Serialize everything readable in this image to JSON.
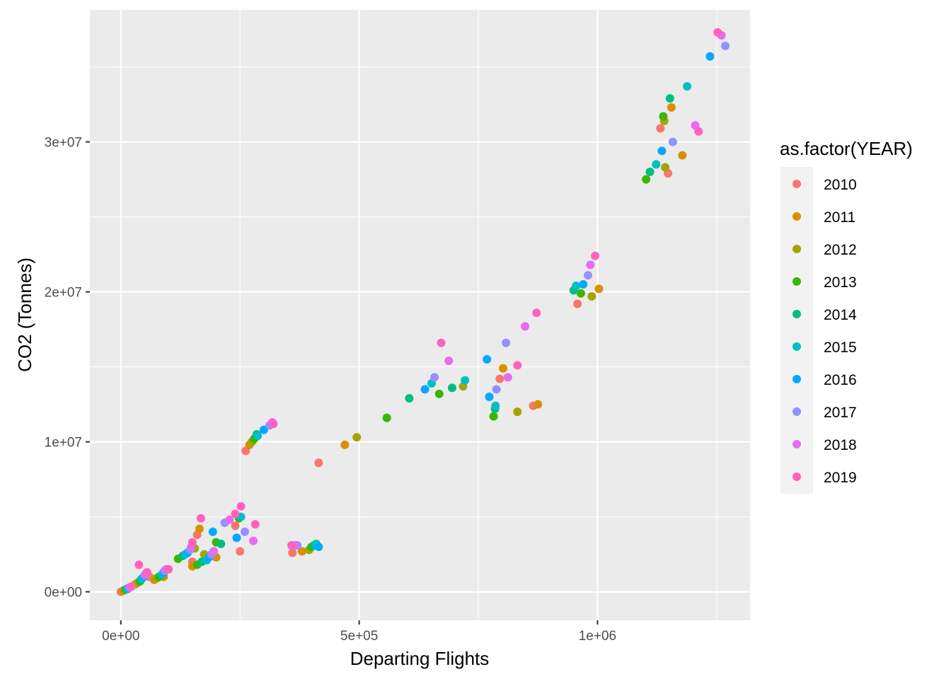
{
  "chart_data": {
    "type": "scatter",
    "xlabel": "Departing Flights",
    "ylabel": "CO2 (Tonnes)",
    "xlim": [
      -65000,
      1320000
    ],
    "ylim": [
      -1900000,
      38800000
    ],
    "x_ticks": [
      {
        "value": 0,
        "label": "0e+00"
      },
      {
        "value": 500000,
        "label": "5e+05"
      },
      {
        "value": 1000000,
        "label": "1e+06"
      }
    ],
    "y_ticks": [
      {
        "value": 0,
        "label": "0e+00"
      },
      {
        "value": 10000000,
        "label": "1e+07"
      },
      {
        "value": 20000000,
        "label": "2e+07"
      },
      {
        "value": 30000000,
        "label": "3e+07"
      }
    ],
    "grid": true,
    "legend": {
      "title": "as.factor(YEAR)",
      "position": "right"
    },
    "series": [
      {
        "name": "2010",
        "color": "#F8766D",
        "points": [
          [
            0,
            0
          ],
          [
            15000,
            200000
          ],
          [
            40000,
            700000
          ],
          [
            60000,
            1000000
          ],
          [
            150000,
            2000000
          ],
          [
            160000,
            3800000
          ],
          [
            240000,
            4400000
          ],
          [
            250000,
            2700000
          ],
          [
            262000,
            9400000
          ],
          [
            360000,
            2600000
          ],
          [
            415000,
            8600000
          ],
          [
            795000,
            14200000
          ],
          [
            865000,
            12400000
          ],
          [
            958000,
            19200000
          ],
          [
            1132000,
            30900000
          ],
          [
            1148000,
            27900000
          ]
        ]
      },
      {
        "name": "2011",
        "color": "#D89000",
        "points": [
          [
            5000,
            80000
          ],
          [
            30000,
            500000
          ],
          [
            70000,
            800000
          ],
          [
            90000,
            1000000
          ],
          [
            150000,
            1700000
          ],
          [
            165000,
            4200000
          ],
          [
            200000,
            2300000
          ],
          [
            270000,
            9800000
          ],
          [
            380000,
            2700000
          ],
          [
            470000,
            9800000
          ],
          [
            802000,
            14900000
          ],
          [
            875000,
            12500000
          ],
          [
            1003000,
            20200000
          ],
          [
            1155000,
            32300000
          ],
          [
            1178000,
            29100000
          ]
        ]
      },
      {
        "name": "2012",
        "color": "#A3A500",
        "points": [
          [
            8000,
            120000
          ],
          [
            35000,
            600000
          ],
          [
            75000,
            900000
          ],
          [
            155000,
            2900000
          ],
          [
            175000,
            2500000
          ],
          [
            275000,
            10000000
          ],
          [
            395000,
            2800000
          ],
          [
            495000,
            10300000
          ],
          [
            718000,
            13700000
          ],
          [
            832000,
            12000000
          ],
          [
            988000,
            19700000
          ],
          [
            1140000,
            31400000
          ],
          [
            1142000,
            28300000
          ]
        ]
      },
      {
        "name": "2013",
        "color": "#39B600",
        "points": [
          [
            10000,
            150000
          ],
          [
            40000,
            700000
          ],
          [
            80000,
            1000000
          ],
          [
            120000,
            2200000
          ],
          [
            160000,
            1800000
          ],
          [
            200000,
            3300000
          ],
          [
            248000,
            4900000
          ],
          [
            280000,
            10200000
          ],
          [
            400000,
            3000000
          ],
          [
            558000,
            11600000
          ],
          [
            668000,
            13200000
          ],
          [
            782000,
            11700000
          ],
          [
            965000,
            19900000
          ],
          [
            1102000,
            27500000
          ],
          [
            1138000,
            31700000
          ]
        ]
      },
      {
        "name": "2014",
        "color": "#00BF7D",
        "points": [
          [
            12000,
            180000
          ],
          [
            42000,
            800000
          ],
          [
            85000,
            1100000
          ],
          [
            130000,
            2400000
          ],
          [
            170000,
            2000000
          ],
          [
            210000,
            3200000
          ],
          [
            285000,
            10500000
          ],
          [
            405000,
            3100000
          ],
          [
            605000,
            12900000
          ],
          [
            695000,
            13600000
          ],
          [
            785000,
            12200000
          ],
          [
            950000,
            20100000
          ],
          [
            1110000,
            28000000
          ],
          [
            1152000,
            32900000
          ]
        ]
      },
      {
        "name": "2015",
        "color": "#00BFC4",
        "points": [
          [
            14000,
            220000
          ],
          [
            45000,
            900000
          ],
          [
            88000,
            1200000
          ],
          [
            135000,
            2500000
          ],
          [
            180000,
            2100000
          ],
          [
            252000,
            5000000
          ],
          [
            287000,
            10400000
          ],
          [
            410000,
            3200000
          ],
          [
            652000,
            13900000
          ],
          [
            722000,
            14100000
          ],
          [
            786000,
            12400000
          ],
          [
            955000,
            20400000
          ],
          [
            1123000,
            28500000
          ],
          [
            1188000,
            33700000
          ]
        ]
      },
      {
        "name": "2016",
        "color": "#00A9FF",
        "points": [
          [
            16000,
            250000
          ],
          [
            48000,
            1000000
          ],
          [
            90000,
            1300000
          ],
          [
            140000,
            2600000
          ],
          [
            185000,
            2300000
          ],
          [
            193000,
            4000000
          ],
          [
            243000,
            3600000
          ],
          [
            300000,
            10800000
          ],
          [
            415000,
            3000000
          ],
          [
            638000,
            13500000
          ],
          [
            768000,
            15500000
          ],
          [
            773000,
            13000000
          ],
          [
            970000,
            20500000
          ],
          [
            1135000,
            29400000
          ],
          [
            1236000,
            35700000
          ]
        ]
      },
      {
        "name": "2017",
        "color": "#9590FF",
        "points": [
          [
            18000,
            280000
          ],
          [
            50000,
            1100000
          ],
          [
            92000,
            1400000
          ],
          [
            145000,
            2800000
          ],
          [
            190000,
            2500000
          ],
          [
            218000,
            4600000
          ],
          [
            260000,
            4000000
          ],
          [
            312000,
            11100000
          ],
          [
            370000,
            3100000
          ],
          [
            658000,
            14300000
          ],
          [
            788000,
            13500000
          ],
          [
            808000,
            16600000
          ],
          [
            980000,
            21100000
          ],
          [
            1158000,
            30000000
          ],
          [
            1268000,
            36400000
          ]
        ]
      },
      {
        "name": "2018",
        "color": "#E76BF3",
        "points": [
          [
            20000,
            320000
          ],
          [
            52000,
            1200000
          ],
          [
            95000,
            1500000
          ],
          [
            148000,
            3000000
          ],
          [
            195000,
            2700000
          ],
          [
            228000,
            4800000
          ],
          [
            278000,
            3400000
          ],
          [
            318000,
            11300000
          ],
          [
            365000,
            3100000
          ],
          [
            688000,
            15400000
          ],
          [
            812000,
            14300000
          ],
          [
            848000,
            17700000
          ],
          [
            985000,
            21800000
          ],
          [
            1205000,
            31100000
          ],
          [
            1260000,
            37100000
          ]
        ]
      },
      {
        "name": "2019",
        "color": "#FF62BC",
        "points": [
          [
            22000,
            350000
          ],
          [
            38000,
            1800000
          ],
          [
            55000,
            1300000
          ],
          [
            100000,
            1500000
          ],
          [
            150000,
            3300000
          ],
          [
            168000,
            4900000
          ],
          [
            240000,
            5200000
          ],
          [
            252000,
            5700000
          ],
          [
            282000,
            4500000
          ],
          [
            320000,
            11200000
          ],
          [
            358000,
            3100000
          ],
          [
            672000,
            16600000
          ],
          [
            832000,
            15100000
          ],
          [
            872000,
            18600000
          ],
          [
            995000,
            22400000
          ],
          [
            1212000,
            30700000
          ],
          [
            1252000,
            37300000
          ]
        ]
      }
    ]
  }
}
